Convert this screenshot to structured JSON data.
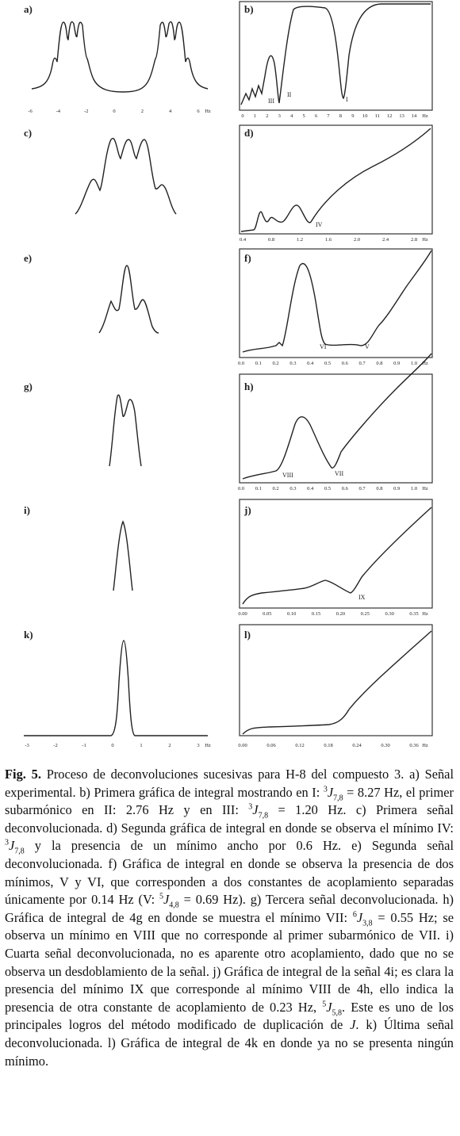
{
  "panels": [
    {
      "label": "a)",
      "ticks": [
        "-6",
        "-4",
        "-2",
        "0",
        "2",
        "4",
        "6"
      ],
      "unit": "Hz"
    },
    {
      "label": "b)",
      "ticks": [
        "0",
        "1",
        "2",
        "3",
        "4",
        "5",
        "6",
        "7",
        "8",
        "9",
        "10",
        "11",
        "12",
        "13",
        "14"
      ],
      "unit": "Hz",
      "annotations": [
        "III",
        "II",
        "I"
      ]
    },
    {
      "label": "c)"
    },
    {
      "label": "d)",
      "ticks": [
        "0.4",
        "0.8",
        "1.2",
        "1.6",
        "2.0",
        "2.4",
        "2.8"
      ],
      "unit": "Hz",
      "annotations": [
        "IV"
      ]
    },
    {
      "label": "e)"
    },
    {
      "label": "f)",
      "ticks": [
        "0.0",
        "0.1",
        "0.2",
        "0.3",
        "0.4",
        "0.5",
        "0.6",
        "0.7",
        "0.8",
        "0.9",
        "1.0"
      ],
      "unit": "Hz",
      "annotations": [
        "VI",
        "V"
      ]
    },
    {
      "label": "g)"
    },
    {
      "label": "h)",
      "ticks": [
        "0.0",
        "0.1",
        "0.2",
        "0.3",
        "0.4",
        "0.5",
        "0.6",
        "0.7",
        "0.8",
        "0.9",
        "1.0"
      ],
      "unit": "Hz",
      "annotations": [
        "VIII",
        "VII"
      ]
    },
    {
      "label": "i)"
    },
    {
      "label": "j)",
      "ticks": [
        "0.00",
        "0.05",
        "0.10",
        "0.15",
        "0.20",
        "0.25",
        "0.30",
        "0.35"
      ],
      "unit": "Hz",
      "annotations": [
        "IX"
      ]
    },
    {
      "label": "k)",
      "ticks": [
        "-3",
        "-2",
        "-1",
        "0",
        "1",
        "2",
        "3"
      ],
      "unit": "Hz"
    },
    {
      "label": "l)",
      "ticks": [
        "0.00",
        "0.06",
        "0.12",
        "0.18",
        "0.24",
        "0.30",
        "0.36"
      ],
      "unit": "Hz"
    }
  ],
  "caption": [
    "Fig. 5.",
    " Proceso de deconvoluciones sucesivas para H-8 del compuesto 3. a) Señal experimental. b) Primera gráfica de integral mostrando en I: ",
    "3",
    "J",
    "7,8",
    " = 8.27 Hz, el primer subarmónico en II: 2.76 Hz y en III: ",
    "3",
    "J",
    "7,8",
    " = 1.20 Hz. c) Primera señal deconvolucionada. d) Segunda gráfica de integral en donde se observa el mínimo IV: ",
    "3",
    "J",
    "7,8",
    " y la presencia de un mínimo ancho por 0.6 Hz. e) Segunda señal deconvolucionada. f) Gráfica de integral en donde se observa la presencia de dos mínimos, V y VI, que corresponden a dos constantes de acoplamiento separadas únicamente por 0.14 Hz (V: ",
    "5",
    "J",
    "4,8",
    " = 0.69 Hz). g) Tercera señal deconvolucionada. h) Gráfica de integral de 4g en donde se muestra el mínimo VII: ",
    "6",
    "J",
    "3,8",
    " = 0.55 Hz; se observa un mínimo en VIII que no corresponde al primer subarmónico de VII. i) Cuarta señal deconvolucionada, no es aparente otro acoplamiento, dado que no se observa un desdoblamiento de la señal. j) Gráfica de integral de la señal 4i; es clara la presencia del mínimo IX que corresponde al mínimo VIII de 4h, ello indica la presencia de otra constante de acoplamiento de 0.23 Hz, ",
    "5",
    "J",
    "5,8",
    ". Este es uno de los principales logros del método modificado de duplicación de ",
    "J",
    ". k) Última señal deconvolucionada. l) Gráfica de integral de 4k en donde ya no se presenta ningún mínimo."
  ]
}
